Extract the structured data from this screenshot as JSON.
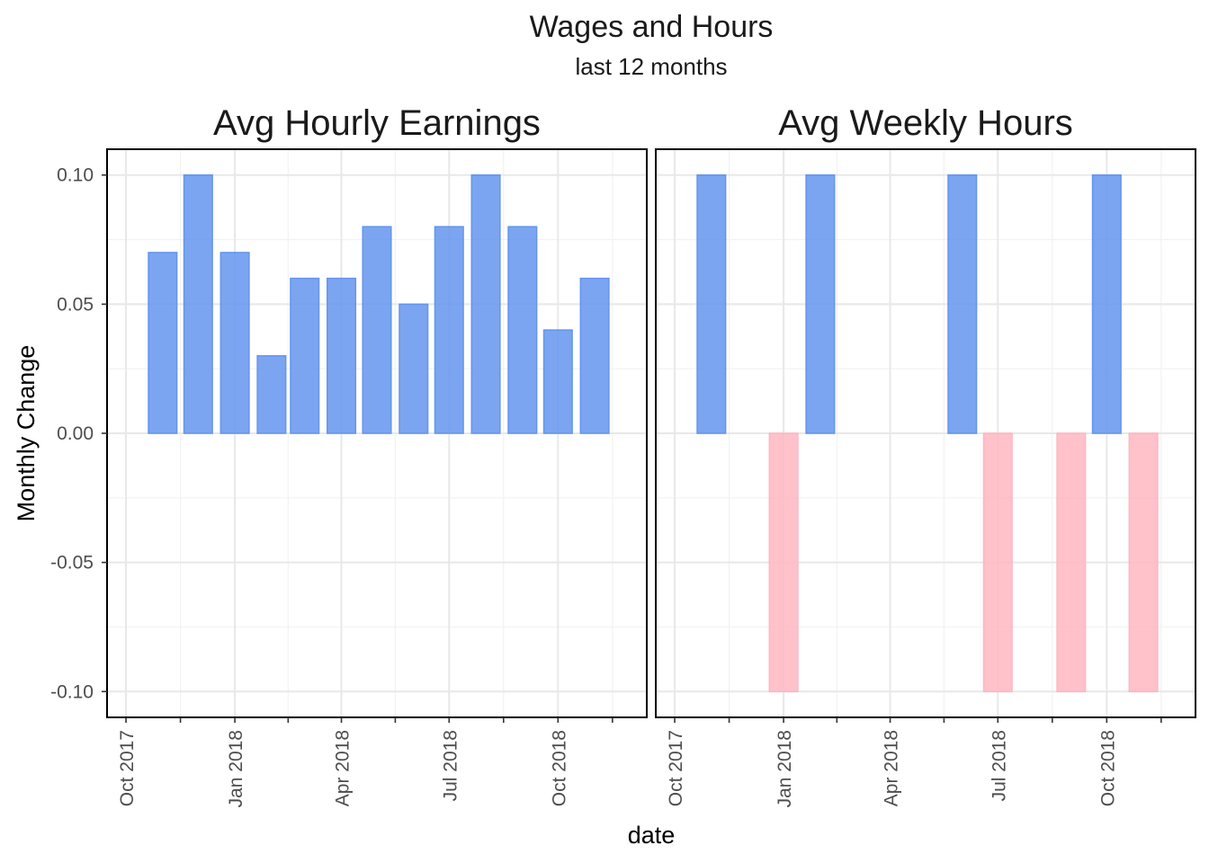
{
  "chart_data": {
    "type": "bar",
    "title": "Wages and Hours",
    "subtitle": "last 12 months",
    "xlabel": "date",
    "ylabel": "Monthly Change",
    "ylim": [
      -0.11,
      0.11
    ],
    "xlim": [
      "2017-09-15",
      "2018-12-15"
    ],
    "y_ticks": [
      -0.1,
      -0.05,
      0.0,
      0.05,
      0.1
    ],
    "y_tick_labels": [
      "-0.10",
      "-0.05",
      "0.00",
      "0.05",
      "0.10"
    ],
    "x_ticks": [
      "2017-10-01",
      "2018-01-01",
      "2018-04-01",
      "2018-07-01",
      "2018-10-01"
    ],
    "x_tick_labels": [
      "Oct 2017",
      "Jan 2018",
      "Apr 2018",
      "Jul 2018",
      "Oct 2018"
    ],
    "grid": true,
    "colors": {
      "positive": "#6495ED",
      "negative": "#FFB6C1"
    },
    "panels": [
      {
        "title": "Avg Hourly Earnings",
        "x": [
          "2017-11-01",
          "2017-12-01",
          "2018-01-01",
          "2018-02-01",
          "2018-03-01",
          "2018-04-01",
          "2018-05-01",
          "2018-06-01",
          "2018-07-01",
          "2018-08-01",
          "2018-09-01",
          "2018-10-01",
          "2018-11-01"
        ],
        "values": [
          0.07,
          0.1,
          0.07,
          0.03,
          0.06,
          0.06,
          0.08,
          0.05,
          0.08,
          0.1,
          0.08,
          0.04,
          0.06
        ]
      },
      {
        "title": "Avg Weekly Hours",
        "x": [
          "2017-11-01",
          "2017-12-01",
          "2018-01-01",
          "2018-02-01",
          "2018-03-01",
          "2018-04-01",
          "2018-05-01",
          "2018-06-01",
          "2018-07-01",
          "2018-08-01",
          "2018-09-01",
          "2018-10-01",
          "2018-11-01"
        ],
        "values": [
          0.1,
          0.0,
          -0.1,
          0.1,
          0.0,
          0.0,
          0.0,
          0.1,
          -0.1,
          0.0,
          -0.1,
          0.1,
          -0.1
        ]
      }
    ]
  }
}
